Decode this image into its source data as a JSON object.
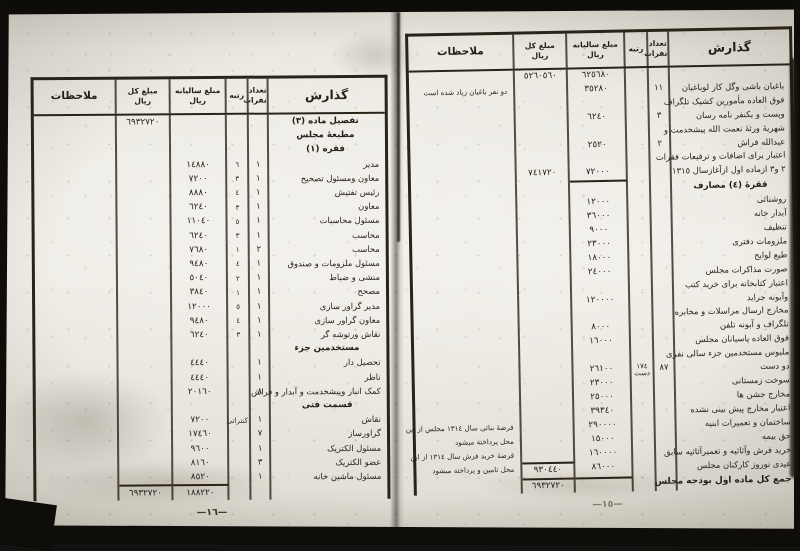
{
  "columns": {
    "description": "گذارش",
    "count_line1": "تعداد",
    "count_line2": "نفرات",
    "rank": "رتبه",
    "annual_line1": "مبلغ سالیانه",
    "annual_line2": "ریال",
    "total_line1": "مبلغ کل",
    "total_line2": "ریال",
    "remarks": "ملاحظات"
  },
  "pages": {
    "right": {
      "page_number": "—١٥—",
      "rows": [
        {
          "annual": "٦٢٥٦٨٠",
          "total": "٥٢٦٠٥٦٠"
        },
        {
          "desc": "باغبان باشی وگل کار لوباغبان",
          "count": "١١",
          "annual": "٣٥٢٨٠",
          "remark": "دو نفر باغبان زیاد شده است"
        },
        {
          "desc": "فوق العاده مأمورین کشیک تلگراف"
        },
        {
          "desc": "وپست و یکنفر نامه رسان",
          "count": "٣",
          "annual": "٦٢٤٠"
        },
        {
          "desc": "شهریهٔ ورثهٔ نعمت الله پیشخدمت و"
        },
        {
          "desc": "عبدالله فراش",
          "count": "٢",
          "annual": "٢٥٢٠"
        },
        {
          "desc": "اعتبار برای اضافات و ترفیعات فقرات"
        },
        {
          "desc": "٢ و٣ ازماده اول ازآغازسال ١٣١٥",
          "annual": "٧٢٠٠٠",
          "total": "٧٤١٧٢٠",
          "style": "subtot"
        },
        {
          "desc": "فقرهٔ (٤) مصارف",
          "style": "sec"
        },
        {
          "desc": "روشنائی",
          "annual": "١٢٠٠٠"
        },
        {
          "desc": "آبدار خانه",
          "annual": "٣٦٠٠٠"
        },
        {
          "desc": "تنظیف",
          "annual": "٩٠٠٠"
        },
        {
          "desc": "ملزومات دفتری",
          "annual": "٢٣٠٠٠"
        },
        {
          "desc": "طبع لوایح",
          "annual": "١٨٠٠٠"
        },
        {
          "desc": "صورت مذاکرات مجلس",
          "annual": "٢٤٠٠٠"
        },
        {
          "desc": "اعتبار کتابخانه برای خرید کتب"
        },
        {
          "desc": "وآبونه جراید",
          "annual": "١٢٠٠٠٠"
        },
        {
          "desc": "مخارج ارسال مراسلات و مخابره"
        },
        {
          "desc": "تلگراف و آبونه تلفن",
          "annual": "٨٠٠٠"
        },
        {
          "desc": "فوق العاده پاسبانان مجلس",
          "annual": "١٦٠٠٠"
        },
        {
          "desc": "ملبوس مستخدمین جزء سالی نفری"
        },
        {
          "desc": "دو دست",
          "count": "٨٧",
          "rank": "١٧٤ دست",
          "annual": "٢٦١٠٠"
        },
        {
          "desc": "سوخت زمستانی",
          "annual": "٢٣٠٠٠"
        },
        {
          "desc": "مخارج جشن ها",
          "annual": "٢٥٠٠٠"
        },
        {
          "desc": "اعتبار مخارج پیش بینی نشده",
          "annual": "٣٩٣٤٠"
        },
        {
          "desc": "ساختمان و تعمیرات ابنیه",
          "annual": "٢٩٠٠٠٠",
          "remark": "قرضهٔ بنائی سال ١٣١٤ مجلس از این"
        },
        {
          "desc": "حق بیمه",
          "annual": "١٥٠٠٠",
          "remark": "محل پرداخته میشود"
        },
        {
          "desc": "خرید فرش وآثاثیه و تعمیرآثاثیه سابق",
          "annual": "١٦٠٠٠٠",
          "remark": "قرضهٔ خرید فرش سال ١٣١٤ از این"
        },
        {
          "desc": "عیدی نوروز کارکنان مجلس",
          "annual": "٨٦٠٠٠",
          "total": "٩٣٠٤٤٠",
          "remark": "محل تامین و پرداخته میشود",
          "style": "sum"
        },
        {
          "desc": "جمع کل ماده اول بودجه مجلس",
          "total": "٦٩٣٢٧٢٠",
          "style": "grand"
        }
      ]
    },
    "left": {
      "page_number": "—١٦—",
      "rows": [
        {
          "desc": "تفصیل ماده (٣)",
          "total": "٦٩٣٢٧٢٠",
          "style": "sec"
        },
        {
          "desc": "مطبعهٔ مجلس",
          "style": "sec"
        },
        {
          "desc": "فقره (١)",
          "style": "sec"
        },
        {
          "desc": "مدیر",
          "count": "١",
          "rank": "٦",
          "annual": "١٤٨٨٠"
        },
        {
          "desc": "معاون ومسئول تصحیح",
          "count": "١",
          "rank": "٣",
          "annual": "٧٢٠٠"
        },
        {
          "desc": "رئیس تفتیش",
          "count": "١",
          "rank": "٤",
          "annual": "٨٨٨٠"
        },
        {
          "desc": "معاون",
          "count": "١",
          "rank": "٣",
          "annual": "٦٢٤٠"
        },
        {
          "desc": "مسئول محاسبات",
          "count": "١",
          "rank": "٥",
          "annual": "١١٠٤٠"
        },
        {
          "desc": "محاسب",
          "count": "١",
          "rank": "٣",
          "annual": "٦٢٤٠"
        },
        {
          "desc": "محاسب",
          "count": "٢",
          "rank": "١",
          "annual": "٧٦٨٠"
        },
        {
          "desc": "مسئول ملزومات و صندوق",
          "count": "١",
          "rank": "٤",
          "annual": "٩٤٨٠"
        },
        {
          "desc": "منشی و ضباط",
          "count": "١",
          "rank": "٢",
          "annual": "٥٠٤٠"
        },
        {
          "desc": "مصحح",
          "count": "١",
          "rank": "١",
          "annual": "٣٨٤٠"
        },
        {
          "desc": "مدیر گراور سازی",
          "count": "١",
          "rank": "٥",
          "annual": "١٢٠٠٠"
        },
        {
          "desc": "معاون گراور سازی",
          "count": "١",
          "rank": "٤",
          "annual": "٩٤٨٠"
        },
        {
          "desc": "نقاش ورتوشه گر",
          "count": "١",
          "rank": "٣",
          "annual": "٦٢٤٠"
        },
        {
          "desc": "مستخدمین جزء",
          "style": "sec"
        },
        {
          "desc": "تحصیل دار",
          "count": "١",
          "annual": "٤٤٤٠"
        },
        {
          "desc": "ناظر",
          "count": "١",
          "annual": "٤٤٤٠"
        },
        {
          "desc": "کمک انبار وپیشخدمت و آبدار و فراش",
          "count": "٨",
          "annual": "٢٠١٦٠"
        },
        {
          "desc": "قسمت فنی",
          "style": "sec"
        },
        {
          "desc": "نقاش",
          "count": "١",
          "rank": "کنتراتی",
          "annual": "٧٢٠٠"
        },
        {
          "desc": "گراورساز",
          "count": "٧",
          "annual": "١٧٤٦٠"
        },
        {
          "desc": "مسئول الکتریک",
          "count": "١",
          "annual": "٩٦٠٠"
        },
        {
          "desc": "عضو الکتریک",
          "count": "٣",
          "annual": "٨١٦٠"
        },
        {
          "desc": "مسئول ماشین خانه",
          "count": "١",
          "annual": "٨٥٢٠"
        },
        {
          "annual": "١٨٨٢٢٠",
          "total": "٦٩٣٢٧٢٠",
          "style": "grand"
        }
      ]
    }
  }
}
